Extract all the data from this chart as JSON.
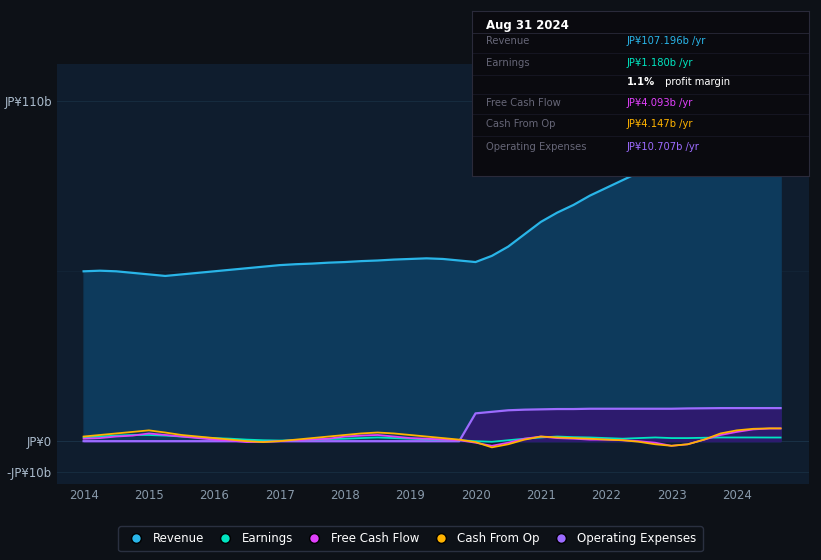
{
  "background_color": "#0d1117",
  "plot_bg_color": "#0f1d2e",
  "revenue_color": "#29b5e8",
  "earnings_color": "#00e5c0",
  "free_cash_flow_color": "#e040fb",
  "cash_from_op_color": "#ffb300",
  "operating_expenses_color": "#9c6bff",
  "fill_revenue_color": "#0d3a5c",
  "fill_opex_color": "#2d1b6e",
  "grid_color": "#1e3a50",
  "text_color": "#8899aa",
  "tick_color": "#aabbcc",
  "ytick_labels": [
    "JP¥110b",
    "JP¥0",
    "-JP¥10b"
  ],
  "ytick_positions": [
    110,
    0,
    -10
  ],
  "ylim": [
    -14,
    122
  ],
  "xlim": [
    2013.6,
    2025.1
  ],
  "xlabel_years": [
    2014,
    2015,
    2016,
    2017,
    2018,
    2019,
    2020,
    2021,
    2022,
    2023,
    2024
  ],
  "legend_items": [
    {
      "label": "Revenue",
      "color": "#29b5e8"
    },
    {
      "label": "Earnings",
      "color": "#00e5c0"
    },
    {
      "label": "Free Cash Flow",
      "color": "#e040fb"
    },
    {
      "label": "Cash From Op",
      "color": "#ffb300"
    },
    {
      "label": "Operating Expenses",
      "color": "#9c6bff"
    }
  ],
  "info_box_date": "Aug 31 2024",
  "info_rows": [
    {
      "label": "Revenue",
      "value": "JP¥107.196b /yr",
      "color": "#29b5e8"
    },
    {
      "label": "Earnings",
      "value": "JP¥1.180b /yr",
      "color": "#00e5c0"
    },
    {
      "label": "",
      "value": "1.1% profit margin",
      "color": "#ffffff",
      "bold": "1.1%"
    },
    {
      "label": "Free Cash Flow",
      "value": "JP¥4.093b /yr",
      "color": "#e040fb"
    },
    {
      "label": "Cash From Op",
      "value": "JP¥4.147b /yr",
      "color": "#ffb300"
    },
    {
      "label": "Operating Expenses",
      "value": "JP¥10.707b /yr",
      "color": "#9c6bff"
    }
  ]
}
